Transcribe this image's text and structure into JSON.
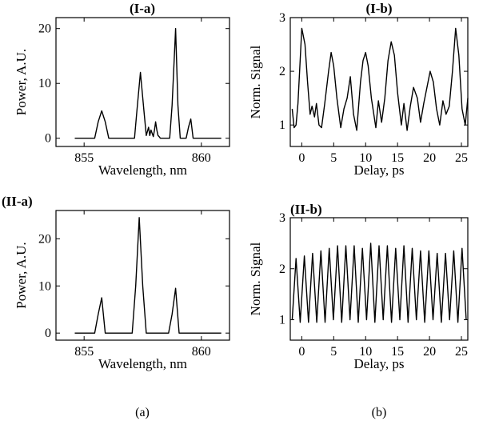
{
  "captions": [
    "(a)",
    "(b)"
  ],
  "chart_data": [
    {
      "type": "line",
      "title": "(I-a)",
      "xlabel": "Wavelength, nm",
      "ylabel": "Power, A.U.",
      "xlim": [
        853.8,
        861.2
      ],
      "ylim": [
        -1.5,
        22
      ],
      "xticks": [
        855,
        860
      ],
      "yticks": [
        0,
        10,
        20
      ],
      "series": [
        {
          "x": [
            854.6,
            855.45,
            855.6,
            855.75,
            855.9,
            856.05,
            857.15,
            857.25,
            857.4,
            857.55,
            857.65,
            857.75,
            857.8,
            857.85,
            857.95,
            858.0,
            858.05,
            858.1,
            858.15,
            858.2,
            858.25,
            858.65,
            858.75,
            858.9,
            859.0,
            859.1,
            859.35,
            859.45,
            859.55,
            859.65,
            860.85
          ],
          "y": [
            0,
            0,
            3,
            5,
            3,
            0,
            0,
            5,
            12,
            5,
            0.5,
            2,
            0.5,
            1.5,
            0.3,
            1.5,
            3,
            1.5,
            0.5,
            0.3,
            0,
            0,
            6,
            20,
            6,
            0,
            0,
            2,
            3.5,
            0,
            0
          ]
        }
      ]
    },
    {
      "type": "line",
      "title": "(I-b)",
      "xlabel": "Delay, ps",
      "ylabel": "Norm. Signal",
      "xlim": [
        -1.8,
        26
      ],
      "ylim": [
        0.6,
        3
      ],
      "xticks": [
        0,
        5,
        10,
        15,
        20,
        25
      ],
      "yticks": [
        1,
        2,
        3
      ],
      "series": [
        {
          "x": [
            -1.5,
            -1.2,
            -0.9,
            -0.6,
            -0.3,
            0.0,
            0.5,
            0.9,
            1.3,
            1.6,
            2.0,
            2.3,
            2.7,
            3.1,
            3.6,
            4.2,
            4.6,
            5.0,
            5.5,
            6.1,
            6.6,
            7.1,
            7.6,
            8.1,
            8.6,
            9.2,
            9.6,
            10.0,
            10.4,
            10.9,
            11.6,
            12.0,
            12.5,
            13.0,
            13.5,
            14.0,
            14.5,
            15.0,
            15.6,
            16.0,
            16.5,
            17.0,
            17.5,
            18.1,
            18.6,
            19.1,
            19.6,
            20.1,
            20.6,
            21.1,
            21.6,
            22.1,
            22.6,
            23.1,
            23.6,
            24.1,
            24.6,
            25.1,
            25.6,
            26.0
          ],
          "y": [
            1.3,
            0.95,
            1.0,
            1.4,
            2.1,
            2.8,
            2.5,
            1.8,
            1.2,
            1.35,
            1.15,
            1.4,
            1.0,
            0.95,
            1.4,
            2.0,
            2.35,
            2.1,
            1.5,
            0.95,
            1.3,
            1.5,
            1.9,
            1.2,
            0.9,
            1.8,
            2.2,
            2.35,
            2.1,
            1.5,
            0.95,
            1.45,
            1.05,
            1.5,
            2.2,
            2.55,
            2.3,
            1.6,
            1.0,
            1.4,
            0.9,
            1.35,
            1.7,
            1.5,
            1.05,
            1.4,
            1.7,
            2.0,
            1.8,
            1.3,
            1.0,
            1.45,
            1.2,
            1.35,
            2.0,
            2.8,
            2.3,
            1.3,
            1.0,
            1.5
          ]
        }
      ]
    },
    {
      "type": "line",
      "title": "(II-a)",
      "xlabel": "Wavelength, nm",
      "ylabel": "Power, A.U.",
      "xlim": [
        853.8,
        861.2
      ],
      "ylim": [
        -1.5,
        26
      ],
      "xticks": [
        855,
        860
      ],
      "yticks": [
        0,
        10,
        20
      ],
      "series": [
        {
          "x": [
            854.6,
            855.45,
            855.6,
            855.75,
            855.9,
            857.05,
            857.2,
            857.35,
            857.5,
            857.65,
            858.6,
            858.75,
            858.9,
            859.05,
            860.85
          ],
          "y": [
            0,
            0,
            4,
            7.5,
            0,
            0,
            10,
            24.5,
            10,
            0,
            0,
            4,
            9.5,
            0,
            0
          ]
        }
      ]
    },
    {
      "type": "line",
      "title": "(II-b)",
      "xlabel": "Delay, ps",
      "ylabel": "Norm. Signal",
      "xlim": [
        -1.8,
        26
      ],
      "ylim": [
        0.6,
        3
      ],
      "xticks": [
        0,
        5,
        10,
        15,
        20,
        25
      ],
      "yticks": [
        1,
        2,
        3
      ],
      "series": [
        {
          "x": [
            -1.5,
            -0.9,
            -0.25,
            0.4,
            1.05,
            1.7,
            2.35,
            3.0,
            3.65,
            4.3,
            4.95,
            5.6,
            6.25,
            6.9,
            7.55,
            8.2,
            8.85,
            9.5,
            10.15,
            10.8,
            11.45,
            12.1,
            12.75,
            13.4,
            14.05,
            14.7,
            15.35,
            16.0,
            16.65,
            17.3,
            17.95,
            18.6,
            19.25,
            19.9,
            20.55,
            21.2,
            21.85,
            22.5,
            23.15,
            23.8,
            24.45,
            25.1,
            25.75
          ],
          "y": [
            1.0,
            2.2,
            0.95,
            2.25,
            0.95,
            2.3,
            0.95,
            2.35,
            0.95,
            2.4,
            1.0,
            2.45,
            0.95,
            2.45,
            1.0,
            2.45,
            0.95,
            2.4,
            1.0,
            2.5,
            0.95,
            2.45,
            1.0,
            2.45,
            0.95,
            2.4,
            1.0,
            2.45,
            0.95,
            2.4,
            1.0,
            2.35,
            0.95,
            2.35,
            1.0,
            2.3,
            0.95,
            2.3,
            1.0,
            2.35,
            0.95,
            2.4,
            1.0
          ]
        }
      ]
    }
  ]
}
